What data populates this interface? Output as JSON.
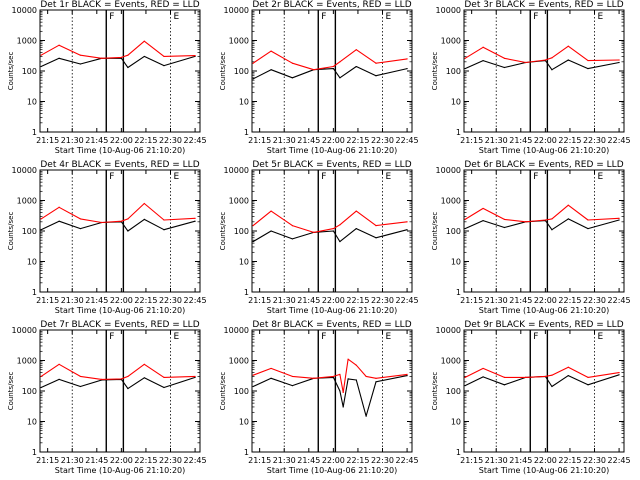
{
  "figure": {
    "series_colors": {
      "events": "#000000",
      "lld": "#ff0000"
    },
    "background": "#ffffff"
  },
  "chart_data": [
    {
      "panel": "Det 1r",
      "type": "line",
      "title": "Det 1r BLACK = Events, RED = LLD",
      "xlabel": "Start Time (10-Aug-06 21:10:20)",
      "ylabel": "Counts/sec",
      "x_ticks": [
        "21:15",
        "21:30",
        "21:45",
        "22:00",
        "22:15",
        "22:30",
        "22:45"
      ],
      "y_ticks": [
        "1",
        "10",
        "100",
        "1000",
        "10000"
      ],
      "ylim": [
        1,
        10000
      ],
      "y_scale": "log",
      "markers": {
        "F": "21:52",
        "E": "22:30"
      },
      "series": [
        {
          "label": "Events",
          "color": "#000000",
          "x": [
            "21:11",
            "21:22",
            "21:35",
            "21:48",
            "22:00",
            "22:04",
            "22:14",
            "22:26",
            "22:45"
          ],
          "y": [
            140,
            260,
            170,
            260,
            260,
            130,
            300,
            150,
            300
          ]
        },
        {
          "label": "LLD",
          "color": "#ff0000",
          "x": [
            "21:11",
            "21:22",
            "21:35",
            "21:48",
            "22:00",
            "22:04",
            "22:14",
            "22:26",
            "22:45"
          ],
          "y": [
            330,
            700,
            330,
            260,
            280,
            330,
            950,
            300,
            320
          ]
        }
      ]
    },
    {
      "panel": "Det 2r",
      "type": "line",
      "title": "Det 2r BLACK = Events, RED = LLD",
      "xlabel": "Start Time (10-Aug-06 21:10:20)",
      "ylabel": "Counts/sec",
      "x_ticks": [
        "21:15",
        "21:30",
        "21:45",
        "22:00",
        "22:15",
        "22:30",
        "22:45"
      ],
      "y_ticks": [
        "1",
        "10",
        "100",
        "1000",
        "10000"
      ],
      "ylim": [
        1,
        10000
      ],
      "y_scale": "log",
      "markers": {
        "F": "21:52",
        "E": "22:30"
      },
      "series": [
        {
          "label": "Events",
          "color": "#000000",
          "x": [
            "21:11",
            "21:22",
            "21:35",
            "21:48",
            "22:00",
            "22:04",
            "22:14",
            "22:26",
            "22:45"
          ],
          "y": [
            55,
            110,
            60,
            110,
            120,
            60,
            140,
            70,
            120
          ]
        },
        {
          "label": "LLD",
          "color": "#ff0000",
          "x": [
            "21:11",
            "21:22",
            "21:35",
            "21:48",
            "22:00",
            "22:04",
            "22:14",
            "22:26",
            "22:45"
          ],
          "y": [
            180,
            450,
            180,
            110,
            140,
            200,
            500,
            180,
            250
          ]
        }
      ]
    },
    {
      "panel": "Det 3r",
      "type": "line",
      "title": "Det 3r BLACK = Events, RED = LLD",
      "xlabel": "Start Time (10-Aug-06 21:10:20)",
      "ylabel": "Counts/sec",
      "x_ticks": [
        "21:15",
        "21:30",
        "21:45",
        "22:00",
        "22:15",
        "22:30",
        "22:45"
      ],
      "y_ticks": [
        "1",
        "10",
        "100",
        "1000",
        "10000"
      ],
      "ylim": [
        1,
        10000
      ],
      "y_scale": "log",
      "markers": {
        "F": "21:52",
        "E": "22:30"
      },
      "series": [
        {
          "label": "Events",
          "color": "#000000",
          "x": [
            "21:11",
            "21:22",
            "21:35",
            "21:48",
            "22:00",
            "22:04",
            "22:14",
            "22:26",
            "22:45"
          ],
          "y": [
            120,
            220,
            130,
            190,
            220,
            110,
            230,
            120,
            190
          ]
        },
        {
          "label": "LLD",
          "color": "#ff0000",
          "x": [
            "21:11",
            "21:22",
            "21:35",
            "21:48",
            "22:00",
            "22:04",
            "22:14",
            "22:26",
            "22:45"
          ],
          "y": [
            260,
            600,
            260,
            190,
            230,
            270,
            650,
            220,
            230
          ]
        }
      ]
    },
    {
      "panel": "Det 4r",
      "type": "line",
      "title": "Det 4r BLACK = Events, RED = LLD",
      "xlabel": "Start Time (10-Aug-06 21:10:20)",
      "ylabel": "Counts/sec",
      "x_ticks": [
        "21:15",
        "21:30",
        "21:45",
        "22:00",
        "22:15",
        "22:30",
        "22:45"
      ],
      "y_ticks": [
        "1",
        "10",
        "100",
        "1000",
        "10000"
      ],
      "ylim": [
        1,
        10000
      ],
      "y_scale": "log",
      "markers": {
        "F": "21:52",
        "E": "22:30"
      },
      "series": [
        {
          "label": "Events",
          "color": "#000000",
          "x": [
            "21:11",
            "21:22",
            "21:35",
            "21:48",
            "22:00",
            "22:04",
            "22:14",
            "22:26",
            "22:45"
          ],
          "y": [
            110,
            210,
            120,
            190,
            200,
            100,
            240,
            110,
            210
          ]
        },
        {
          "label": "LLD",
          "color": "#ff0000",
          "x": [
            "21:11",
            "21:22",
            "21:35",
            "21:48",
            "22:00",
            "22:04",
            "22:14",
            "22:26",
            "22:45"
          ],
          "y": [
            250,
            600,
            250,
            190,
            210,
            250,
            800,
            230,
            260
          ]
        }
      ]
    },
    {
      "panel": "Det 5r",
      "type": "line",
      "title": "Det 5r BLACK = Events, RED = LLD",
      "xlabel": "Start Time (10-Aug-06 21:10:20)",
      "ylabel": "Counts/sec",
      "x_ticks": [
        "21:15",
        "21:30",
        "21:45",
        "22:00",
        "22:15",
        "22:30",
        "22:45"
      ],
      "y_ticks": [
        "1",
        "10",
        "100",
        "1000",
        "10000"
      ],
      "ylim": [
        1,
        10000
      ],
      "y_scale": "log",
      "markers": {
        "F": "21:52",
        "E": "22:30"
      },
      "series": [
        {
          "label": "Events",
          "color": "#000000",
          "x": [
            "21:11",
            "21:22",
            "21:35",
            "21:48",
            "22:00",
            "22:04",
            "22:14",
            "22:26",
            "22:45"
          ],
          "y": [
            45,
            100,
            55,
            90,
            100,
            45,
            120,
            60,
            110
          ]
        },
        {
          "label": "LLD",
          "color": "#ff0000",
          "x": [
            "21:11",
            "21:22",
            "21:35",
            "21:48",
            "22:00",
            "22:04",
            "22:14",
            "22:26",
            "22:45"
          ],
          "y": [
            150,
            450,
            150,
            90,
            120,
            160,
            450,
            150,
            200
          ]
        }
      ]
    },
    {
      "panel": "Det 6r",
      "type": "line",
      "title": "Det 6r BLACK = Events, RED = LLD",
      "xlabel": "Start Time (10-Aug-06 21:10:20)",
      "ylabel": "Counts/sec",
      "x_ticks": [
        "21:15",
        "21:30",
        "21:45",
        "22:00",
        "22:15",
        "22:30",
        "22:45"
      ],
      "y_ticks": [
        "1",
        "10",
        "100",
        "1000",
        "10000"
      ],
      "ylim": [
        1,
        10000
      ],
      "y_scale": "log",
      "markers": {
        "F": "21:52",
        "E": "22:30"
      },
      "series": [
        {
          "label": "Events",
          "color": "#000000",
          "x": [
            "21:11",
            "21:22",
            "21:35",
            "21:48",
            "22:00",
            "22:04",
            "22:14",
            "22:26",
            "22:45"
          ],
          "y": [
            120,
            220,
            130,
            200,
            220,
            110,
            250,
            120,
            230
          ]
        },
        {
          "label": "LLD",
          "color": "#ff0000",
          "x": [
            "21:11",
            "21:22",
            "21:35",
            "21:48",
            "22:00",
            "22:04",
            "22:14",
            "22:26",
            "22:45"
          ],
          "y": [
            240,
            550,
            240,
            200,
            230,
            250,
            700,
            230,
            260
          ]
        }
      ]
    },
    {
      "panel": "Det 7r",
      "type": "line",
      "title": "Det 7r BLACK = Events, RED = LLD",
      "xlabel": "Start Time (10-Aug-06 21:10:20)",
      "ylabel": "Counts/sec",
      "x_ticks": [
        "21:15",
        "21:30",
        "21:45",
        "22:00",
        "22:15",
        "22:30",
        "22:45"
      ],
      "y_ticks": [
        "1",
        "10",
        "100",
        "1000",
        "10000"
      ],
      "ylim": [
        1,
        10000
      ],
      "y_scale": "log",
      "markers": {
        "F": "21:52",
        "E": "22:30"
      },
      "series": [
        {
          "label": "Events",
          "color": "#000000",
          "x": [
            "21:11",
            "21:22",
            "21:35",
            "21:48",
            "22:00",
            "22:04",
            "22:14",
            "22:26",
            "22:45"
          ],
          "y": [
            130,
            240,
            140,
            230,
            240,
            120,
            270,
            130,
            280
          ]
        },
        {
          "label": "LLD",
          "color": "#ff0000",
          "x": [
            "21:11",
            "21:22",
            "21:35",
            "21:48",
            "22:00",
            "22:04",
            "22:14",
            "22:26",
            "22:45"
          ],
          "y": [
            300,
            750,
            300,
            240,
            250,
            300,
            750,
            280,
            300
          ]
        }
      ]
    },
    {
      "panel": "Det 8r",
      "type": "line",
      "title": "Det 8r BLACK = Events, RED = LLD",
      "xlabel": "Start Time (10-Aug-06 21:10:20)",
      "ylabel": "Counts/sec",
      "x_ticks": [
        "21:15",
        "21:30",
        "21:45",
        "22:00",
        "22:15",
        "22:30",
        "22:45"
      ],
      "y_ticks": [
        "1",
        "10",
        "100",
        "1000",
        "10000"
      ],
      "ylim": [
        1,
        10000
      ],
      "y_scale": "log",
      "markers": {
        "F": "21:52",
        "E": "22:30"
      },
      "series": [
        {
          "label": "Events",
          "color": "#000000",
          "x": [
            "21:11",
            "21:22",
            "21:35",
            "21:48",
            "22:00",
            "22:04",
            "22:06",
            "22:09",
            "22:14",
            "22:20",
            "22:26",
            "22:45"
          ],
          "y": [
            140,
            260,
            150,
            260,
            280,
            100,
            30,
            250,
            230,
            15,
            200,
            320
          ]
        },
        {
          "label": "LLD",
          "color": "#ff0000",
          "x": [
            "21:11",
            "21:22",
            "21:35",
            "21:48",
            "22:00",
            "22:04",
            "22:06",
            "22:09",
            "22:14",
            "22:20",
            "22:26",
            "22:45"
          ],
          "y": [
            330,
            550,
            300,
            260,
            300,
            350,
            90,
            1100,
            700,
            300,
            260,
            350
          ]
        }
      ]
    },
    {
      "panel": "Det 9r",
      "type": "line",
      "title": "Det 9r BLACK = Events, RED = LLD",
      "xlabel": "Start Time (10-Aug-06 21:10:20)",
      "ylabel": "Counts/sec",
      "x_ticks": [
        "21:15",
        "21:30",
        "21:45",
        "22:00",
        "22:15",
        "22:30",
        "22:45"
      ],
      "y_ticks": [
        "1",
        "10",
        "100",
        "1000",
        "10000"
      ],
      "ylim": [
        1,
        10000
      ],
      "y_scale": "log",
      "markers": {
        "F": "21:52",
        "E": "22:30"
      },
      "series": [
        {
          "label": "Events",
          "color": "#000000",
          "x": [
            "21:11",
            "21:22",
            "21:35",
            "21:48",
            "22:00",
            "22:04",
            "22:14",
            "22:26",
            "22:45"
          ],
          "y": [
            150,
            290,
            160,
            280,
            300,
            140,
            320,
            160,
            340
          ]
        },
        {
          "label": "LLD",
          "color": "#ff0000",
          "x": [
            "21:11",
            "21:22",
            "21:35",
            "21:48",
            "22:00",
            "22:04",
            "22:14",
            "22:26",
            "22:45"
          ],
          "y": [
            280,
            550,
            280,
            280,
            300,
            330,
            600,
            280,
            400
          ]
        }
      ]
    }
  ]
}
